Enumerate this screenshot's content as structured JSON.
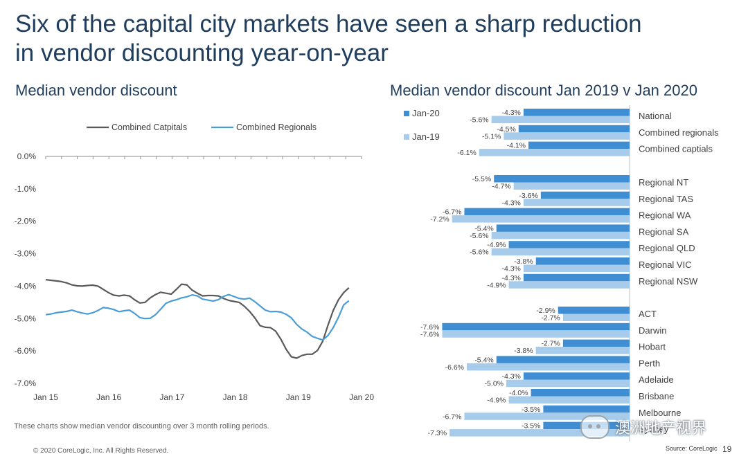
{
  "slide": {
    "title_line1": "Six of the capital city markets have seen a sharp reduction",
    "title_line2": "in vendor discounting year-on-year",
    "note": "These charts show median vendor discounting over 3 month rolling periods.",
    "copyright": "© 2020 CoreLogic, Inc. All Rights Reserved.",
    "source": "Source: CoreLogic",
    "page_number": "19",
    "watermark": "澳洲地产视界"
  },
  "chart_data": [
    {
      "type": "line",
      "title": "Median vendor discount",
      "ylim": [
        -7.0,
        0.0
      ],
      "y_ticks": [
        "0.0%",
        "-1.0%",
        "-2.0%",
        "-3.0%",
        "-4.0%",
        "-5.0%",
        "-6.0%",
        "-7.0%"
      ],
      "x_tick_labels": [
        "Jan 15",
        "Jan 16",
        "Jan 17",
        "Jan 18",
        "Jan 19",
        "Jan 20"
      ],
      "x_start": 2015.0,
      "x_end": 2020.0,
      "grid": false,
      "legend_position": "top",
      "series": [
        {
          "name": "Combined Catpitals",
          "color": "#595959",
          "values": [
            -3.8,
            -3.82,
            -3.84,
            -3.86,
            -3.9,
            -3.96,
            -3.99,
            -4.0,
            -3.98,
            -3.97,
            -4.0,
            -4.1,
            -4.2,
            -4.28,
            -4.3,
            -4.28,
            -4.3,
            -4.42,
            -4.52,
            -4.5,
            -4.36,
            -4.26,
            -4.19,
            -4.22,
            -4.25,
            -4.1,
            -3.94,
            -3.96,
            -4.12,
            -4.22,
            -4.3,
            -4.29,
            -4.29,
            -4.3,
            -4.38,
            -4.44,
            -4.47,
            -4.5,
            -4.62,
            -4.78,
            -4.98,
            -5.22,
            -5.27,
            -5.28,
            -5.39,
            -5.64,
            -5.95,
            -6.18,
            -6.22,
            -6.14,
            -6.1,
            -6.1,
            -5.98,
            -5.7,
            -5.2,
            -4.75,
            -4.42,
            -4.2,
            -4.05
          ]
        },
        {
          "name": "Combined Regionals",
          "color": "#4a9cd6",
          "values": [
            -4.88,
            -4.86,
            -4.82,
            -4.8,
            -4.78,
            -4.74,
            -4.79,
            -4.83,
            -4.86,
            -4.82,
            -4.75,
            -4.66,
            -4.68,
            -4.72,
            -4.79,
            -4.76,
            -4.74,
            -4.84,
            -4.97,
            -5.0,
            -4.99,
            -4.88,
            -4.71,
            -4.53,
            -4.46,
            -4.42,
            -4.36,
            -4.33,
            -4.27,
            -4.3,
            -4.4,
            -4.43,
            -4.46,
            -4.42,
            -4.32,
            -4.26,
            -4.32,
            -4.38,
            -4.4,
            -4.37,
            -4.48,
            -4.61,
            -4.74,
            -4.79,
            -4.78,
            -4.8,
            -4.87,
            -4.98,
            -5.18,
            -5.32,
            -5.42,
            -5.55,
            -5.61,
            -5.66,
            -5.52,
            -5.28,
            -4.96,
            -4.58,
            -4.45
          ]
        }
      ]
    },
    {
      "type": "bar",
      "orientation": "horizontal",
      "title": "Median vendor discount Jan 2019 v Jan 2020",
      "legend_position": "top-left",
      "series": [
        {
          "name": "Jan-20",
          "color": "#3f8ed3"
        },
        {
          "name": "Jan-19",
          "color": "#a6cbeb"
        }
      ],
      "groups": [
        [
          {
            "label": "National",
            "jan20": -4.3,
            "jan19": -5.6
          },
          {
            "label": "Combined regionals",
            "jan20": -4.5,
            "jan19": -5.1
          },
          {
            "label": "Combined captials",
            "jan20": -4.1,
            "jan19": -6.1
          }
        ],
        [
          {
            "label": "Regional NT",
            "jan20": -5.5,
            "jan19": -4.7
          },
          {
            "label": "Regional TAS",
            "jan20": -3.6,
            "jan19": -4.3
          },
          {
            "label": "Regional WA",
            "jan20": -6.7,
            "jan19": -7.2
          },
          {
            "label": "Regional SA",
            "jan20": -5.4,
            "jan19": -5.6
          },
          {
            "label": "Regional QLD",
            "jan20": -4.9,
            "jan19": -5.6
          },
          {
            "label": "Regional VIC",
            "jan20": -3.8,
            "jan19": -4.3
          },
          {
            "label": "Regional NSW",
            "jan20": -4.3,
            "jan19": -4.9
          }
        ],
        [
          {
            "label": "ACT",
            "jan20": -2.9,
            "jan19": -2.7
          },
          {
            "label": "Darwin",
            "jan20": -7.6,
            "jan19": -7.6
          },
          {
            "label": "Hobart",
            "jan20": -2.7,
            "jan19": -3.8
          },
          {
            "label": "Perth",
            "jan20": -5.4,
            "jan19": -6.6
          },
          {
            "label": "Adelaide",
            "jan20": -4.3,
            "jan19": -5.0
          },
          {
            "label": "Brisbane",
            "jan20": -4.0,
            "jan19": -4.9
          },
          {
            "label": "Melbourne",
            "jan20": -3.5,
            "jan19": -6.7
          },
          {
            "label": "Sydney",
            "jan20": -3.5,
            "jan19": -7.3
          }
        ]
      ]
    }
  ]
}
